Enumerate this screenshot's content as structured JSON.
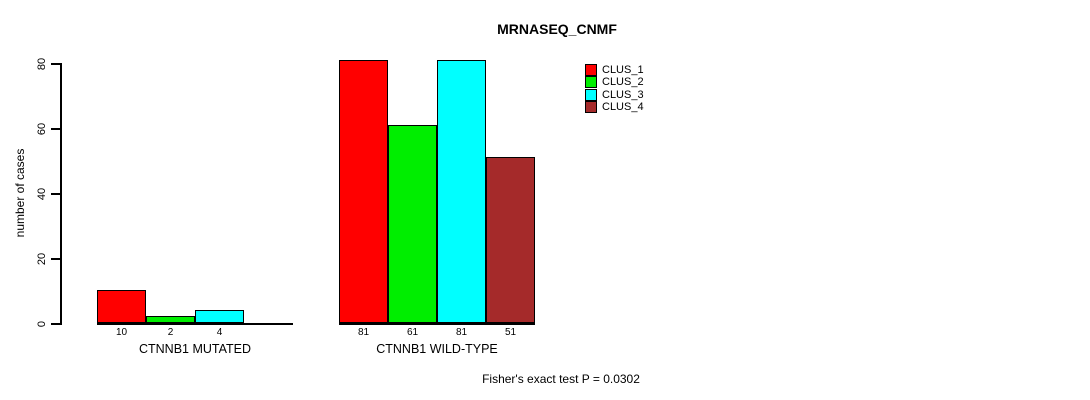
{
  "chart_data": {
    "type": "bar",
    "title": "MRNASEQ_CNMF",
    "ylabel": "number of cases",
    "xlabel": "",
    "ylim": [
      0,
      80
    ],
    "yticks": [
      "0",
      "20",
      "40",
      "60",
      "80"
    ],
    "grid": false,
    "legend_position": "top-right",
    "categories": [
      "CTNNB1 MUTATED",
      "CTNNB1 WILD-TYPE"
    ],
    "series": [
      {
        "name": "CLUS_1",
        "color": "#FF0000",
        "values": [
          10,
          81
        ]
      },
      {
        "name": "CLUS_2",
        "color": "#00EE00",
        "values": [
          2,
          61
        ]
      },
      {
        "name": "CLUS_3",
        "color": "#00FFFF",
        "values": [
          4,
          81
        ]
      },
      {
        "name": "CLUS_4",
        "color": "#A52A2A",
        "values": [
          0,
          51
        ]
      }
    ],
    "bar_value_labels_visible": [
      "10",
      "2",
      "4",
      "81",
      "61",
      "81",
      "51"
    ],
    "annotation": "Fisher's exact test P = 0.0302",
    "axis_color": "#000000",
    "background_color": "#FFFFFF"
  }
}
